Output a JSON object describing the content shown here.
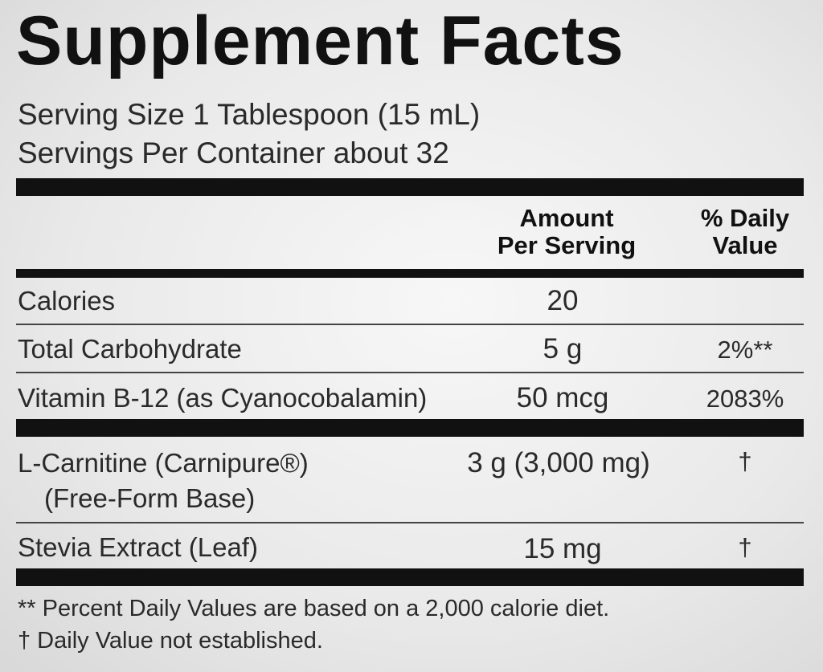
{
  "title": "Supplement Facts",
  "serving_size": "Serving Size 1 Tablespoon (15 mL)",
  "servings_per_container": "Servings Per Container about 32",
  "header": {
    "amount": "Amount",
    "per_serving": "Per Serving",
    "daily": "% Daily",
    "value": "Value"
  },
  "rows": [
    {
      "name": "Calories",
      "amount": "20",
      "dv": ""
    },
    {
      "name": "Total Carbohydrate",
      "amount": "5 g",
      "dv": "2%**"
    },
    {
      "name": "Vitamin B-12 (as Cyanocobalamin)",
      "amount": "50 mcg",
      "dv": "2083%"
    },
    {
      "name": "L-Carnitine (Carnipure®)",
      "name2": "(Free-Form Base)",
      "amount": "3 g (3,000 mg)",
      "dv": "†"
    },
    {
      "name": "Stevia Extract (Leaf)",
      "amount": "15 mg",
      "dv": "†"
    }
  ],
  "footnotes": [
    "** Percent Daily Values are based on a 2,000 calorie diet.",
    "† Daily Value not established."
  ]
}
